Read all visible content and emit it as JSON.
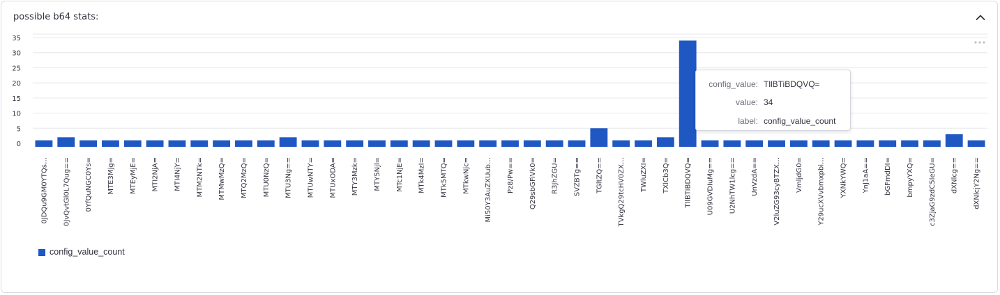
{
  "panel": {
    "title": "possible b64 stats:",
    "collapse_icon": "chevron-up-icon",
    "more_icon": "more-horizontal-icon"
  },
  "colors": {
    "bar": "#1f57c3",
    "grid": "#e6e7ea",
    "text": "#31333f"
  },
  "chart_data": {
    "type": "bar",
    "ylim": [
      0,
      35
    ],
    "yticks": [
      0,
      5,
      10,
      15,
      20,
      25,
      30,
      35
    ],
    "grid": true,
    "legend": "bottom-left",
    "categories": [
      "0JDQu9GM0YTQs…",
      "0JvQvtGl0L7Qug==",
      "0YfQuNGC0Ys=",
      "MTE3Mjg=",
      "MTEyMjE=",
      "MTI2NjA=",
      "MTI4NjY=",
      "MTM2NTk=",
      "MTMwMzQ=",
      "MTQ2MzQ=",
      "MTU0NzQ=",
      "MTU3Ng==",
      "MTUwNTY=",
      "MTUxODA=",
      "MTY3Mzk=",
      "MTY5Njl=",
      "MTc1NjE=",
      "MTk4MzI=",
      "MTk5MTQ=",
      "MTkwNjc=",
      "Mi50Y3AuZXUub…",
      "Pz8/Pw==",
      "Q29sbGFiVk0=",
      "R3JhZGU=",
      "SVZBTg==",
      "TGltZQ==",
      "TVkgQ29tcHV0ZX…",
      "TWluZXI=",
      "TXlCb3Q=",
      "TllBTiBDQVQ=",
      "U09GVDIuMg==",
      "U2NhTW1lcg==",
      "UnVzdA==",
      "V2luZG93cyBTZX…",
      "VmljdG0=",
      "Y29ucXVvbmxpbi…",
      "YXNkYWQ=",
      "YnJ1aA==",
      "bGFmdDI=",
      "bmpyYXQ=",
      "c3ZjaG9zdC5leGU=",
      "dXNlcg==",
      "dXNlcjY2Ng=="
    ],
    "series": [
      {
        "name": "config_value_count",
        "values": [
          1,
          2,
          1,
          1,
          1,
          1,
          1,
          1,
          1,
          1,
          1,
          2,
          1,
          1,
          1,
          1,
          1,
          1,
          1,
          1,
          1,
          1,
          1,
          1,
          1,
          5,
          1,
          1,
          2,
          34,
          1,
          1,
          1,
          1,
          1,
          1,
          1,
          1,
          1,
          1,
          1,
          3,
          1
        ]
      }
    ],
    "tooltip": {
      "rows": [
        {
          "key": "config_value:",
          "value": "TllBTiBDQVQ="
        },
        {
          "key": "value:",
          "value": "34"
        },
        {
          "key": "label:",
          "value": "config_value_count"
        }
      ]
    }
  }
}
